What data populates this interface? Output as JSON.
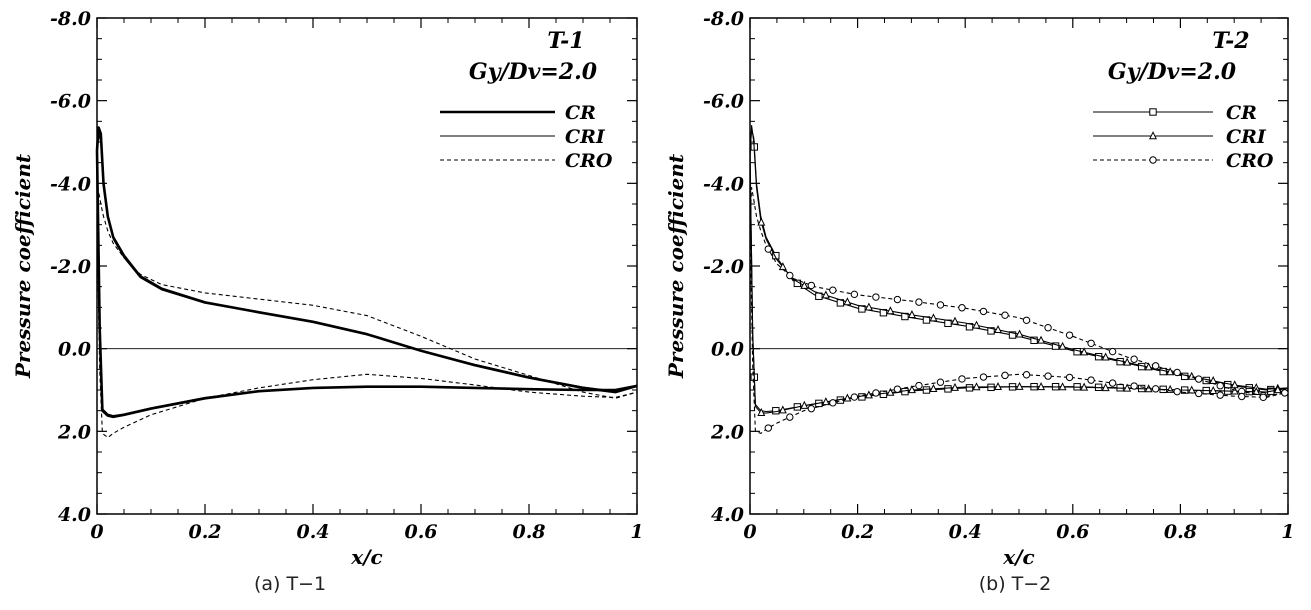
{
  "chart_data": [
    {
      "type": "line",
      "title": "T-1",
      "subtitle": "Gy/Dv=2.0",
      "caption": "(a) T−1",
      "xlabel": "x/c",
      "ylabel": "Pressure coefficient",
      "xlim": [
        0,
        1
      ],
      "ylim": [
        -8.0,
        4.0
      ],
      "y_inverted": true,
      "xticks": [
        "0",
        "0.2",
        "0.4",
        "0.6",
        "0.8",
        "1"
      ],
      "yticks": [
        "-8.0",
        "-6.0",
        "-4.0",
        "-2.0",
        "0.0",
        "2.0",
        "4.0"
      ],
      "legend_position": "top-right",
      "series": [
        {
          "name": "CR",
          "style": "thick-solid",
          "upper": {
            "x": [
              0,
              0.003,
              0.007,
              0.012,
              0.02,
              0.03,
              0.05,
              0.08,
              0.12,
              0.2,
              0.3,
              0.4,
              0.5,
              0.6,
              0.7,
              0.8,
              0.9,
              0.96,
              1.0
            ],
            "y": [
              -4.8,
              -5.35,
              -5.2,
              -4.0,
              -3.2,
              -2.7,
              -2.25,
              -1.75,
              -1.45,
              -1.12,
              -0.88,
              -0.65,
              -0.35,
              0.05,
              0.4,
              0.7,
              0.95,
              1.05,
              0.9
            ]
          },
          "lower": {
            "x": [
              0,
              0.005,
              0.01,
              0.02,
              0.03,
              0.05,
              0.1,
              0.2,
              0.3,
              0.4,
              0.5,
              0.6,
              0.7,
              0.8,
              0.9,
              0.96,
              1.0
            ],
            "y": [
              -4.8,
              -0.5,
              1.5,
              1.62,
              1.65,
              1.6,
              1.45,
              1.2,
              1.03,
              0.95,
              0.92,
              0.92,
              0.95,
              0.98,
              1.0,
              1.0,
              0.9
            ]
          }
        },
        {
          "name": "CRI",
          "style": "thin-solid",
          "upper": {
            "x": [
              0,
              0.003,
              0.007,
              0.012,
              0.02,
              0.03,
              0.05,
              0.08,
              0.12,
              0.2,
              0.3,
              0.4,
              0.5,
              0.6,
              0.7,
              0.8,
              0.9,
              0.96,
              1.0
            ],
            "y": [
              -4.6,
              -5.2,
              -5.0,
              -3.9,
              -3.15,
              -2.65,
              -2.2,
              -1.72,
              -1.42,
              -1.1,
              -0.87,
              -0.64,
              -0.36,
              0.04,
              0.38,
              0.68,
              0.93,
              1.03,
              0.9
            ]
          },
          "lower": {
            "x": [
              0,
              0.005,
              0.01,
              0.02,
              0.03,
              0.05,
              0.1,
              0.2,
              0.3,
              0.4,
              0.5,
              0.6,
              0.7,
              0.8,
              0.9,
              0.96,
              1.0
            ],
            "y": [
              -4.6,
              -0.4,
              1.45,
              1.58,
              1.62,
              1.58,
              1.43,
              1.18,
              1.02,
              0.94,
              0.92,
              0.92,
              0.95,
              0.98,
              1.0,
              1.0,
              0.9
            ]
          }
        },
        {
          "name": "CRO",
          "style": "dashed",
          "upper": {
            "x": [
              0,
              0.003,
              0.007,
              0.012,
              0.02,
              0.03,
              0.05,
              0.08,
              0.12,
              0.2,
              0.3,
              0.4,
              0.5,
              0.6,
              0.7,
              0.8,
              0.9,
              0.96,
              1.0
            ],
            "y": [
              -3.0,
              -3.8,
              -3.5,
              -3.2,
              -2.85,
              -2.55,
              -2.2,
              -1.8,
              -1.55,
              -1.35,
              -1.2,
              -1.05,
              -0.8,
              -0.3,
              0.25,
              0.65,
              1.05,
              1.2,
              1.05
            ]
          },
          "lower": {
            "x": [
              0,
              0.005,
              0.01,
              0.02,
              0.03,
              0.05,
              0.1,
              0.2,
              0.3,
              0.4,
              0.5,
              0.6,
              0.7,
              0.8,
              0.9,
              0.96,
              1.0
            ],
            "y": [
              -3.0,
              0.5,
              2.05,
              2.15,
              2.05,
              1.9,
              1.6,
              1.2,
              0.95,
              0.75,
              0.62,
              0.72,
              0.88,
              1.05,
              1.15,
              1.18,
              1.05
            ]
          }
        }
      ]
    },
    {
      "type": "line",
      "title": "T-2",
      "subtitle": "Gy/Dv=2.0",
      "caption": "(b) T−2",
      "xlabel": "x/c",
      "ylabel": "Pressure coefficient",
      "xlim": [
        0,
        1
      ],
      "ylim": [
        -8.0,
        4.0
      ],
      "y_inverted": true,
      "xticks": [
        "0",
        "0.2",
        "0.4",
        "0.6",
        "0.8",
        "1"
      ],
      "yticks": [
        "-8.0",
        "-6.0",
        "-4.0",
        "-2.0",
        "0.0",
        "2.0",
        "4.0"
      ],
      "legend_position": "top-right",
      "series": [
        {
          "name": "CR",
          "style": "solid-square",
          "upper": {
            "x": [
              0,
              0.003,
              0.007,
              0.012,
              0.02,
              0.03,
              0.05,
              0.08,
              0.12,
              0.2,
              0.3,
              0.4,
              0.5,
              0.6,
              0.7,
              0.8,
              0.9,
              0.96,
              1.0
            ],
            "y": [
              -4.8,
              -5.3,
              -5.1,
              -4.0,
              -3.2,
              -2.7,
              -2.2,
              -1.65,
              -1.3,
              -0.98,
              -0.75,
              -0.55,
              -0.3,
              0.05,
              0.35,
              0.65,
              0.9,
              1.0,
              0.95
            ]
          },
          "lower": {
            "x": [
              0,
              0.005,
              0.01,
              0.02,
              0.03,
              0.05,
              0.1,
              0.2,
              0.3,
              0.4,
              0.5,
              0.6,
              0.7,
              0.8,
              0.9,
              0.96,
              1.0
            ],
            "y": [
              -4.8,
              -0.3,
              1.35,
              1.5,
              1.52,
              1.5,
              1.38,
              1.18,
              1.02,
              0.95,
              0.92,
              0.92,
              0.95,
              1.0,
              1.03,
              1.05,
              0.95
            ]
          }
        },
        {
          "name": "CRI",
          "style": "solid-triangle",
          "upper": {
            "x": [
              0,
              0.003,
              0.007,
              0.012,
              0.02,
              0.03,
              0.05,
              0.08,
              0.12,
              0.2,
              0.3,
              0.4,
              0.5,
              0.6,
              0.7,
              0.8,
              0.9,
              0.96,
              1.0
            ],
            "y": [
              -4.6,
              -5.4,
              -5.0,
              -3.9,
              -3.1,
              -2.65,
              -2.15,
              -1.68,
              -1.38,
              -1.05,
              -0.82,
              -0.62,
              -0.35,
              0.02,
              0.33,
              0.62,
              0.88,
              0.98,
              0.95
            ]
          },
          "lower": {
            "x": [
              0,
              0.005,
              0.01,
              0.02,
              0.03,
              0.05,
              0.1,
              0.2,
              0.3,
              0.4,
              0.5,
              0.6,
              0.7,
              0.8,
              0.9,
              0.96,
              1.0
            ],
            "y": [
              -4.6,
              -0.4,
              1.4,
              1.55,
              1.56,
              1.52,
              1.38,
              1.16,
              1.0,
              0.93,
              0.92,
              0.93,
              0.96,
              1.0,
              1.03,
              1.05,
              0.95
            ]
          }
        },
        {
          "name": "CRO",
          "style": "dashed-circle",
          "upper": {
            "x": [
              0,
              0.003,
              0.007,
              0.012,
              0.02,
              0.03,
              0.05,
              0.08,
              0.12,
              0.2,
              0.3,
              0.4,
              0.5,
              0.6,
              0.7,
              0.8,
              0.9,
              0.96,
              1.0
            ],
            "y": [
              -3.0,
              -3.9,
              -3.6,
              -3.2,
              -2.85,
              -2.5,
              -2.05,
              -1.7,
              -1.5,
              -1.3,
              -1.15,
              -0.98,
              -0.75,
              -0.3,
              0.2,
              0.6,
              1.0,
              1.15,
              1.05
            ]
          },
          "lower": {
            "x": [
              0,
              0.005,
              0.01,
              0.02,
              0.03,
              0.05,
              0.1,
              0.2,
              0.3,
              0.4,
              0.5,
              0.6,
              0.7,
              0.8,
              0.9,
              0.96,
              1.0
            ],
            "y": [
              -3.0,
              0.4,
              2.0,
              2.05,
              1.95,
              1.8,
              1.5,
              1.15,
              0.92,
              0.72,
              0.62,
              0.7,
              0.88,
              1.05,
              1.15,
              1.18,
              1.05
            ]
          }
        }
      ]
    }
  ]
}
